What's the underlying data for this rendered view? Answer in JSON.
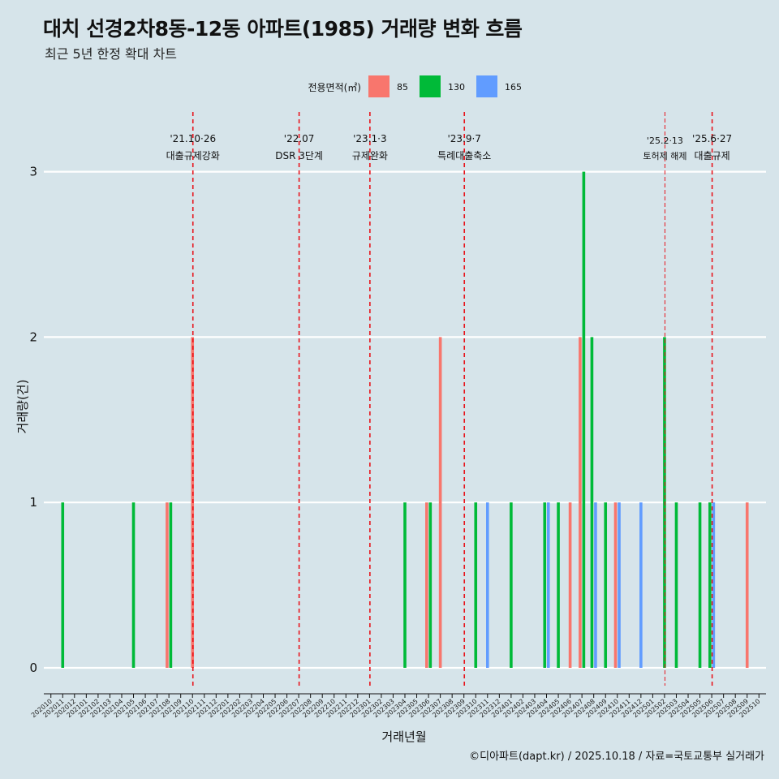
{
  "title": "대치 선경2차8동-12동 아파트(1985) 거래량 변화 흐름",
  "subtitle": "최근 5년 한정 확대 차트",
  "caption": "©디아파트(dapt.kr) / 2025.10.18 / 자료=국토교통부 실거래가",
  "chart_data": {
    "type": "bar",
    "xlabel": "거래년월",
    "ylabel": "거래량(건)",
    "ylim": [
      0,
      3
    ],
    "yticks": [
      0,
      1,
      2,
      3
    ],
    "legend_title": "전용면적(㎡)",
    "legend_position": "top",
    "categories": [
      "202010",
      "202011",
      "202012",
      "202101",
      "202102",
      "202103",
      "202104",
      "202105",
      "202106",
      "202107",
      "202108",
      "202109",
      "202110",
      "202111",
      "202112",
      "202201",
      "202202",
      "202203",
      "202204",
      "202205",
      "202206",
      "202207",
      "202208",
      "202209",
      "202210",
      "202211",
      "202212",
      "202301",
      "202302",
      "202303",
      "202304",
      "202305",
      "202306",
      "202307",
      "202308",
      "202309",
      "202310",
      "202311",
      "202312",
      "202401",
      "202402",
      "202403",
      "202404",
      "202405",
      "202406",
      "202407",
      "202408",
      "202409",
      "202410",
      "202411",
      "202412",
      "202501",
      "202502",
      "202503",
      "202504",
      "202505",
      "202506",
      "202507",
      "202508",
      "202509",
      "202510"
    ],
    "series": [
      {
        "name": "85",
        "color": "#f8766d",
        "values": [
          0,
          0,
          0,
          0,
          0,
          0,
          0,
          0,
          0,
          0,
          1,
          0,
          2,
          0,
          0,
          0,
          0,
          0,
          0,
          0,
          0,
          0,
          0,
          0,
          0,
          0,
          0,
          0,
          0,
          0,
          0,
          0,
          1,
          2,
          0,
          0,
          0,
          0,
          0,
          0,
          0,
          0,
          0,
          0,
          1,
          2,
          0,
          0,
          1,
          0,
          0,
          0,
          0,
          0,
          0,
          0,
          0,
          0,
          0,
          1,
          0
        ]
      },
      {
        "name": "130",
        "color": "#00ba38",
        "values": [
          0,
          1,
          0,
          0,
          0,
          0,
          0,
          1,
          0,
          0,
          1,
          0,
          0,
          0,
          0,
          0,
          0,
          0,
          0,
          0,
          0,
          0,
          0,
          0,
          0,
          0,
          0,
          0,
          0,
          0,
          1,
          0,
          1,
          0,
          0,
          0,
          1,
          0,
          0,
          1,
          0,
          0,
          1,
          1,
          0,
          3,
          2,
          1,
          0,
          0,
          0,
          0,
          2,
          1,
          0,
          1,
          1,
          0,
          0,
          0,
          0
        ]
      },
      {
        "name": "165",
        "color": "#619cff",
        "values": [
          0,
          0,
          0,
          0,
          0,
          0,
          0,
          0,
          0,
          0,
          0,
          0,
          0,
          0,
          0,
          0,
          0,
          0,
          0,
          0,
          0,
          0,
          0,
          0,
          0,
          0,
          0,
          0,
          0,
          0,
          0,
          0,
          0,
          0,
          0,
          0,
          0,
          1,
          0,
          0,
          0,
          0,
          1,
          0,
          0,
          0,
          1,
          0,
          1,
          0,
          1,
          0,
          0,
          0,
          0,
          0,
          1,
          0,
          0,
          0,
          0
        ]
      }
    ],
    "annotations": [
      {
        "month": "202110",
        "date": "'21.10·26",
        "label": "대출규제강화",
        "style": "dashed"
      },
      {
        "month": "202207",
        "date": "'22.07",
        "label": "DSR 3단계",
        "style": "dashed"
      },
      {
        "month": "202301",
        "date": "'23.1·3",
        "label": "규제완화",
        "style": "dashed"
      },
      {
        "month": "202309",
        "date": "'23.9·7",
        "label": "특례대출축소",
        "style": "dashed"
      },
      {
        "month": "202502",
        "date": "'25.2·13",
        "label": "토허제 해제",
        "style": "thin"
      },
      {
        "month": "202506",
        "date": "'25.6·27",
        "label": "대출규제",
        "style": "dashed"
      }
    ]
  }
}
